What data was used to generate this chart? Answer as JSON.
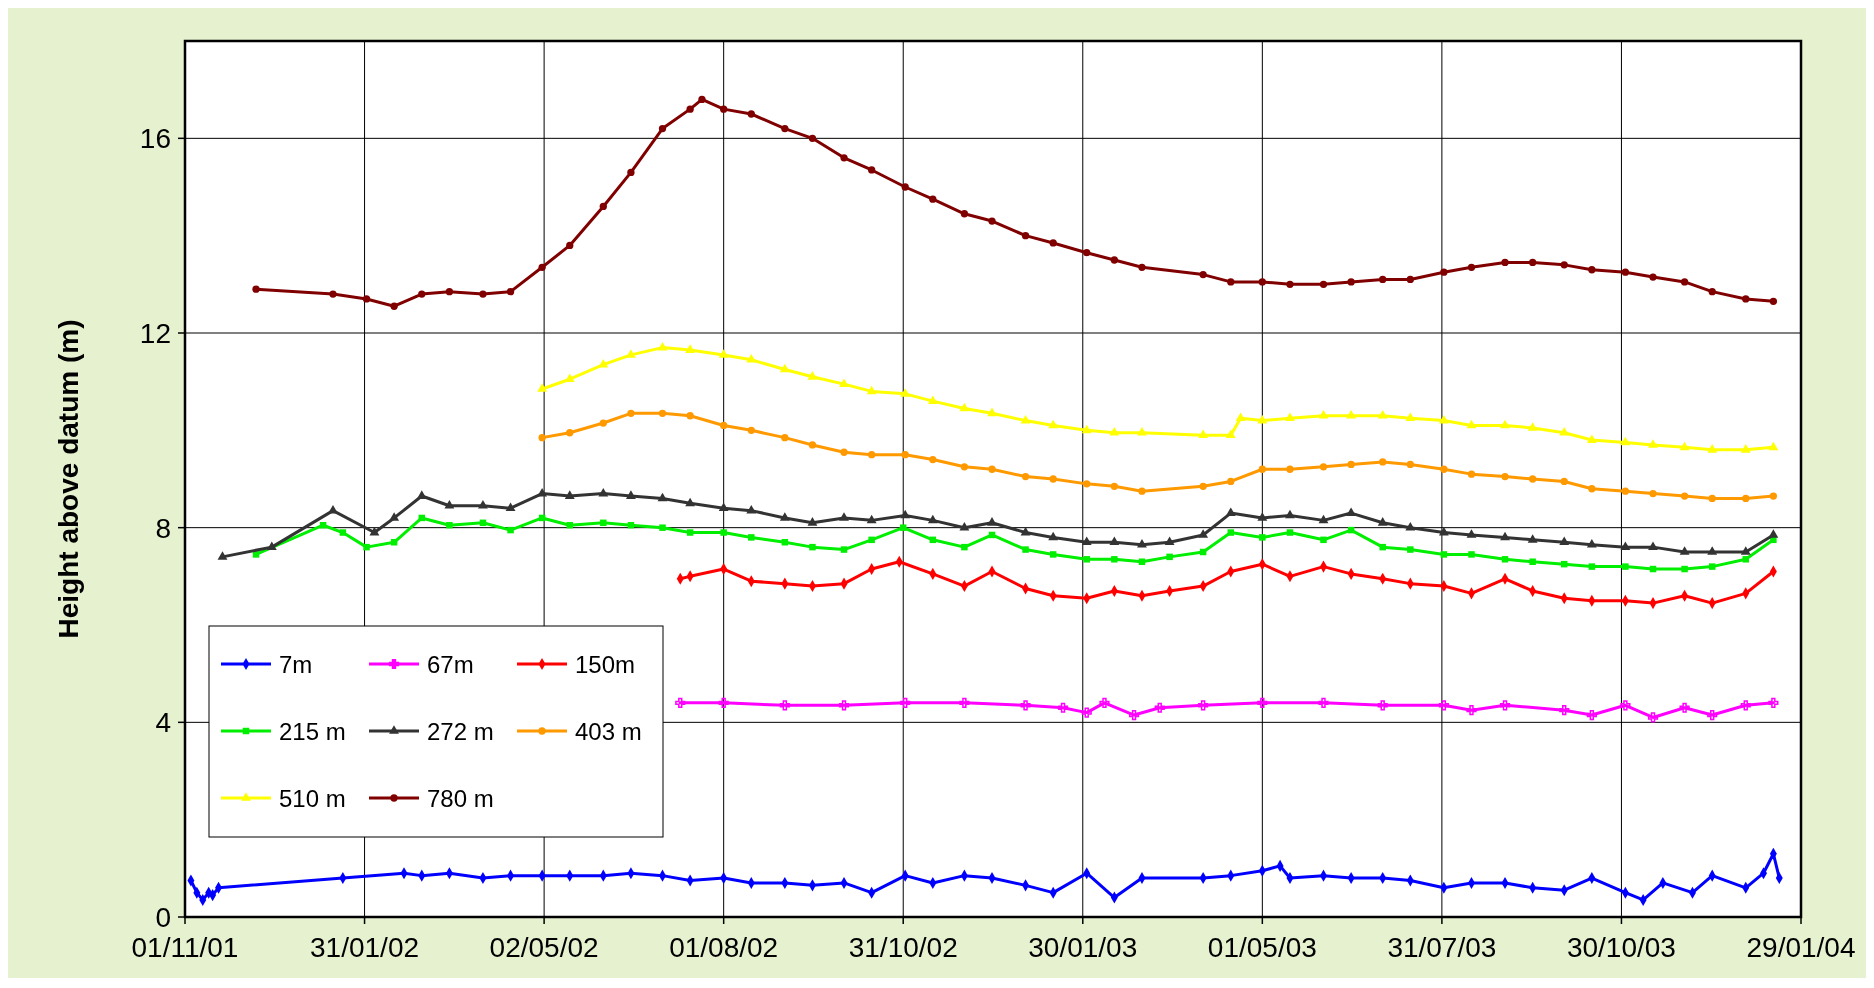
{
  "chart_data": {
    "type": "line",
    "ylabel": "Height above datum (m)",
    "xlim": [
      "2001-11-01",
      "2004-01-29"
    ],
    "ylim": [
      0,
      18
    ],
    "yticks": [
      0,
      4,
      8,
      12,
      16
    ],
    "xticks": [
      {
        "value": "2001-11-01",
        "label": "01/11/01"
      },
      {
        "value": "2002-01-31",
        "label": "31/01/02"
      },
      {
        "value": "2002-05-02",
        "label": "02/05/02"
      },
      {
        "value": "2002-08-01",
        "label": "01/08/02"
      },
      {
        "value": "2002-10-31",
        "label": "31/10/02"
      },
      {
        "value": "2003-01-30",
        "label": "30/01/03"
      },
      {
        "value": "2003-05-01",
        "label": "01/05/03"
      },
      {
        "value": "2003-07-31",
        "label": "31/07/03"
      },
      {
        "value": "2003-10-30",
        "label": "30/10/03"
      },
      {
        "value": "2004-01-29",
        "label": "29/01/04"
      }
    ],
    "grid": true,
    "legend": "bottom left",
    "line_style": "solid",
    "series": [
      {
        "name": "7m",
        "color": "#0000ff",
        "marker": "diamond",
        "x": [
          "2001-11-04",
          "2001-11-07",
          "2001-11-10",
          "2001-11-13",
          "2001-11-15",
          "2001-11-18",
          "2002-01-20",
          "2002-02-20",
          "2002-03-01",
          "2002-03-15",
          "2002-04-01",
          "2002-04-15",
          "2002-05-01",
          "2002-05-15",
          "2002-06-01",
          "2002-06-15",
          "2002-07-01",
          "2002-07-15",
          "2002-08-01",
          "2002-08-15",
          "2002-09-01",
          "2002-09-15",
          "2002-10-01",
          "2002-10-15",
          "2002-11-01",
          "2002-11-15",
          "2002-12-01",
          "2002-12-15",
          "2003-01-01",
          "2003-01-15",
          "2003-02-01",
          "2003-02-15",
          "2003-03-01",
          "2003-04-01",
          "2003-04-15",
          "2003-05-01",
          "2003-05-10",
          "2003-05-15",
          "2003-06-01",
          "2003-06-15",
          "2003-07-01",
          "2003-07-15",
          "2003-08-01",
          "2003-08-15",
          "2003-09-01",
          "2003-09-15",
          "2003-10-01",
          "2003-10-15",
          "2003-11-01",
          "2003-11-10",
          "2003-11-20",
          "2003-12-05",
          "2003-12-15",
          "2004-01-01",
          "2004-01-10",
          "2004-01-15",
          "2004-01-18"
        ],
        "values": [
          0.75,
          0.5,
          0.35,
          0.5,
          0.45,
          0.6,
          0.8,
          0.9,
          0.85,
          0.9,
          0.8,
          0.85,
          0.85,
          0.85,
          0.85,
          0.9,
          0.85,
          0.75,
          0.8,
          0.7,
          0.7,
          0.65,
          0.7,
          0.5,
          0.85,
          0.7,
          0.85,
          0.8,
          0.65,
          0.5,
          0.9,
          0.4,
          0.8,
          0.8,
          0.85,
          0.95,
          1.05,
          0.8,
          0.85,
          0.8,
          0.8,
          0.75,
          0.6,
          0.7,
          0.7,
          0.6,
          0.55,
          0.8,
          0.5,
          0.35,
          0.7,
          0.5,
          0.85,
          0.6,
          0.9,
          1.3,
          0.8
        ]
      },
      {
        "name": "67m",
        "color": "#ff00ff",
        "marker": "cross",
        "x": [
          "2002-07-10",
          "2002-08-01",
          "2002-09-01",
          "2002-10-01",
          "2002-11-01",
          "2002-12-01",
          "2003-01-01",
          "2003-01-20",
          "2003-02-01",
          "2003-02-10",
          "2003-02-25",
          "2003-03-10",
          "2003-04-01",
          "2003-05-01",
          "2003-06-01",
          "2003-07-01",
          "2003-08-01",
          "2003-08-15",
          "2003-09-01",
          "2003-10-01",
          "2003-10-15",
          "2003-11-01",
          "2003-11-15",
          "2003-12-01",
          "2003-12-15",
          "2004-01-01",
          "2004-01-15"
        ],
        "values": [
          4.4,
          4.4,
          4.35,
          4.35,
          4.4,
          4.4,
          4.35,
          4.3,
          4.2,
          4.4,
          4.15,
          4.3,
          4.35,
          4.4,
          4.4,
          4.35,
          4.35,
          4.25,
          4.35,
          4.25,
          4.15,
          4.35,
          4.1,
          4.3,
          4.15,
          4.35,
          4.4
        ]
      },
      {
        "name": "150m",
        "color": "#ff0000",
        "marker": "diamond",
        "x": [
          "2002-07-10",
          "2002-07-15",
          "2002-08-01",
          "2002-08-15",
          "2002-09-01",
          "2002-09-15",
          "2002-10-01",
          "2002-10-15",
          "2002-10-29",
          "2002-11-15",
          "2002-12-01",
          "2002-12-15",
          "2003-01-01",
          "2003-01-15",
          "2003-02-01",
          "2003-02-15",
          "2003-03-01",
          "2003-03-15",
          "2003-04-01",
          "2003-04-15",
          "2003-05-01",
          "2003-05-15",
          "2003-06-01",
          "2003-06-15",
          "2003-07-01",
          "2003-07-15",
          "2003-08-01",
          "2003-08-15",
          "2003-09-01",
          "2003-09-15",
          "2003-10-01",
          "2003-10-15",
          "2003-11-01",
          "2003-11-15",
          "2003-12-01",
          "2003-12-15",
          "2004-01-01",
          "2004-01-15"
        ],
        "values": [
          6.95,
          7.0,
          7.15,
          6.9,
          6.85,
          6.8,
          6.85,
          7.15,
          7.3,
          7.05,
          6.8,
          7.1,
          6.75,
          6.6,
          6.55,
          6.7,
          6.6,
          6.7,
          6.8,
          7.1,
          7.25,
          7.0,
          7.2,
          7.05,
          6.95,
          6.85,
          6.8,
          6.65,
          6.95,
          6.7,
          6.55,
          6.5,
          6.5,
          6.45,
          6.6,
          6.45,
          6.65,
          7.1
        ]
      },
      {
        "name": "215 m",
        "color": "#00ee00",
        "marker": "square",
        "x": [
          "2001-12-07",
          "2002-01-10",
          "2002-01-20",
          "2002-02-01",
          "2002-02-15",
          "2002-03-01",
          "2002-03-15",
          "2002-04-01",
          "2002-04-15",
          "2002-05-01",
          "2002-05-15",
          "2002-06-01",
          "2002-06-15",
          "2002-07-01",
          "2002-07-15",
          "2002-08-01",
          "2002-08-15",
          "2002-09-01",
          "2002-09-15",
          "2002-10-01",
          "2002-10-15",
          "2002-10-31",
          "2002-11-15",
          "2002-12-01",
          "2002-12-15",
          "2003-01-01",
          "2003-01-15",
          "2003-02-01",
          "2003-02-15",
          "2003-03-01",
          "2003-03-15",
          "2003-04-01",
          "2003-04-15",
          "2003-05-01",
          "2003-05-15",
          "2003-06-01",
          "2003-06-15",
          "2003-07-01",
          "2003-07-15",
          "2003-08-01",
          "2003-08-15",
          "2003-09-01",
          "2003-09-15",
          "2003-10-01",
          "2003-10-15",
          "2003-11-01",
          "2003-11-15",
          "2003-12-01",
          "2003-12-15",
          "2004-01-01",
          "2004-01-15"
        ],
        "values": [
          7.45,
          8.05,
          7.9,
          7.6,
          7.7,
          8.2,
          8.05,
          8.1,
          7.95,
          8.2,
          8.05,
          8.1,
          8.05,
          8.0,
          7.9,
          7.9,
          7.8,
          7.7,
          7.6,
          7.55,
          7.75,
          8.0,
          7.75,
          7.6,
          7.85,
          7.55,
          7.45,
          7.35,
          7.35,
          7.3,
          7.4,
          7.5,
          7.9,
          7.8,
          7.9,
          7.75,
          7.95,
          7.6,
          7.55,
          7.45,
          7.45,
          7.35,
          7.3,
          7.25,
          7.2,
          7.2,
          7.15,
          7.15,
          7.2,
          7.35,
          7.75
        ]
      },
      {
        "name": "272 m",
        "color": "#333333",
        "marker": "triangle",
        "x": [
          "2001-11-20",
          "2001-12-15",
          "2002-01-15",
          "2002-02-05",
          "2002-02-15",
          "2002-03-01",
          "2002-03-15",
          "2002-04-01",
          "2002-04-15",
          "2002-05-01",
          "2002-05-15",
          "2002-06-01",
          "2002-06-15",
          "2002-07-01",
          "2002-07-15",
          "2002-08-01",
          "2002-08-15",
          "2002-09-01",
          "2002-09-15",
          "2002-10-01",
          "2002-10-15",
          "2002-11-01",
          "2002-11-15",
          "2002-12-01",
          "2002-12-15",
          "2003-01-01",
          "2003-01-15",
          "2003-02-01",
          "2003-02-15",
          "2003-03-01",
          "2003-03-15",
          "2003-04-01",
          "2003-04-15",
          "2003-05-01",
          "2003-05-15",
          "2003-06-01",
          "2003-06-15",
          "2003-07-01",
          "2003-07-15",
          "2003-08-01",
          "2003-08-15",
          "2003-09-01",
          "2003-09-15",
          "2003-10-01",
          "2003-10-15",
          "2003-11-01",
          "2003-11-15",
          "2003-12-01",
          "2003-12-15",
          "2004-01-01",
          "2004-01-15"
        ],
        "values": [
          7.4,
          7.6,
          8.35,
          7.9,
          8.2,
          8.65,
          8.45,
          8.45,
          8.4,
          8.7,
          8.65,
          8.7,
          8.65,
          8.6,
          8.5,
          8.4,
          8.35,
          8.2,
          8.1,
          8.2,
          8.15,
          8.25,
          8.15,
          8.0,
          8.1,
          7.9,
          7.8,
          7.7,
          7.7,
          7.65,
          7.7,
          7.85,
          8.3,
          8.2,
          8.25,
          8.15,
          8.3,
          8.1,
          8.0,
          7.9,
          7.85,
          7.8,
          7.75,
          7.7,
          7.65,
          7.6,
          7.6,
          7.5,
          7.5,
          7.5,
          7.85
        ]
      },
      {
        "name": "403 m",
        "color": "#ff9900",
        "marker": "circle",
        "x": [
          "2002-05-01",
          "2002-05-15",
          "2002-06-01",
          "2002-06-15",
          "2002-07-01",
          "2002-07-15",
          "2002-08-01",
          "2002-08-15",
          "2002-09-01",
          "2002-09-15",
          "2002-10-01",
          "2002-10-15",
          "2002-11-01",
          "2002-11-15",
          "2002-12-01",
          "2002-12-15",
          "2003-01-01",
          "2003-01-15",
          "2003-02-01",
          "2003-02-15",
          "2003-03-01",
          "2003-04-01",
          "2003-04-15",
          "2003-05-01",
          "2003-05-15",
          "2003-06-01",
          "2003-06-15",
          "2003-07-01",
          "2003-07-15",
          "2003-08-01",
          "2003-08-15",
          "2003-09-01",
          "2003-09-15",
          "2003-10-01",
          "2003-10-15",
          "2003-11-01",
          "2003-11-15",
          "2003-12-01",
          "2003-12-15",
          "2004-01-01",
          "2004-01-15"
        ],
        "values": [
          9.85,
          9.95,
          10.15,
          10.35,
          10.35,
          10.3,
          10.1,
          10.0,
          9.85,
          9.7,
          9.55,
          9.5,
          9.5,
          9.4,
          9.25,
          9.2,
          9.05,
          9.0,
          8.9,
          8.85,
          8.75,
          8.85,
          8.95,
          9.2,
          9.2,
          9.25,
          9.3,
          9.35,
          9.3,
          9.2,
          9.1,
          9.05,
          9.0,
          8.95,
          8.8,
          8.75,
          8.7,
          8.65,
          8.6,
          8.6,
          8.65
        ]
      },
      {
        "name": "510 m",
        "color": "#ffff00",
        "marker": "triangle",
        "x": [
          "2002-05-01",
          "2002-05-15",
          "2002-06-01",
          "2002-06-15",
          "2002-07-01",
          "2002-07-15",
          "2002-08-01",
          "2002-08-15",
          "2002-09-01",
          "2002-09-15",
          "2002-10-01",
          "2002-10-15",
          "2002-11-01",
          "2002-11-15",
          "2002-12-01",
          "2002-12-15",
          "2003-01-01",
          "2003-01-15",
          "2003-02-01",
          "2003-02-15",
          "2003-03-01",
          "2003-04-01",
          "2003-04-15",
          "2003-04-20",
          "2003-05-01",
          "2003-05-15",
          "2003-06-01",
          "2003-06-15",
          "2003-07-01",
          "2003-07-15",
          "2003-08-01",
          "2003-08-15",
          "2003-09-01",
          "2003-09-15",
          "2003-10-01",
          "2003-10-15",
          "2003-11-01",
          "2003-11-15",
          "2003-12-01",
          "2003-12-15",
          "2004-01-01",
          "2004-01-15"
        ],
        "values": [
          10.85,
          11.05,
          11.35,
          11.55,
          11.7,
          11.65,
          11.55,
          11.45,
          11.25,
          11.1,
          10.95,
          10.8,
          10.75,
          10.6,
          10.45,
          10.35,
          10.2,
          10.1,
          10.0,
          9.95,
          9.95,
          9.9,
          9.9,
          10.25,
          10.2,
          10.25,
          10.3,
          10.3,
          10.3,
          10.25,
          10.2,
          10.1,
          10.1,
          10.05,
          9.95,
          9.8,
          9.75,
          9.7,
          9.65,
          9.6,
          9.6,
          9.65
        ]
      },
      {
        "name": "780 m",
        "color": "#800000",
        "marker": "circle",
        "x": [
          "2001-12-07",
          "2002-01-15",
          "2002-02-01",
          "2002-02-15",
          "2002-03-01",
          "2002-03-15",
          "2002-04-01",
          "2002-04-15",
          "2002-05-01",
          "2002-05-15",
          "2002-06-01",
          "2002-06-15",
          "2002-07-01",
          "2002-07-15",
          "2002-07-21",
          "2002-08-01",
          "2002-08-15",
          "2002-09-01",
          "2002-09-15",
          "2002-10-01",
          "2002-10-15",
          "2002-11-01",
          "2002-11-15",
          "2002-12-01",
          "2002-12-15",
          "2003-01-01",
          "2003-01-15",
          "2003-02-01",
          "2003-02-15",
          "2003-03-01",
          "2003-04-01",
          "2003-04-15",
          "2003-05-01",
          "2003-05-15",
          "2003-06-01",
          "2003-06-15",
          "2003-07-01",
          "2003-07-15",
          "2003-08-01",
          "2003-08-15",
          "2003-09-01",
          "2003-09-15",
          "2003-10-01",
          "2003-10-15",
          "2003-11-01",
          "2003-11-15",
          "2003-12-01",
          "2003-12-15",
          "2004-01-01",
          "2004-01-15"
        ],
        "values": [
          12.9,
          12.8,
          12.7,
          12.55,
          12.8,
          12.85,
          12.8,
          12.85,
          13.35,
          13.8,
          14.6,
          15.3,
          16.2,
          16.6,
          16.8,
          16.6,
          16.5,
          16.2,
          16.0,
          15.6,
          15.35,
          15.0,
          14.75,
          14.45,
          14.3,
          14.0,
          13.85,
          13.65,
          13.5,
          13.35,
          13.2,
          13.05,
          13.05,
          13.0,
          13.0,
          13.05,
          13.1,
          13.1,
          13.25,
          13.35,
          13.45,
          13.45,
          13.4,
          13.3,
          13.25,
          13.15,
          13.05,
          12.85,
          12.7,
          12.65
        ]
      }
    ]
  }
}
